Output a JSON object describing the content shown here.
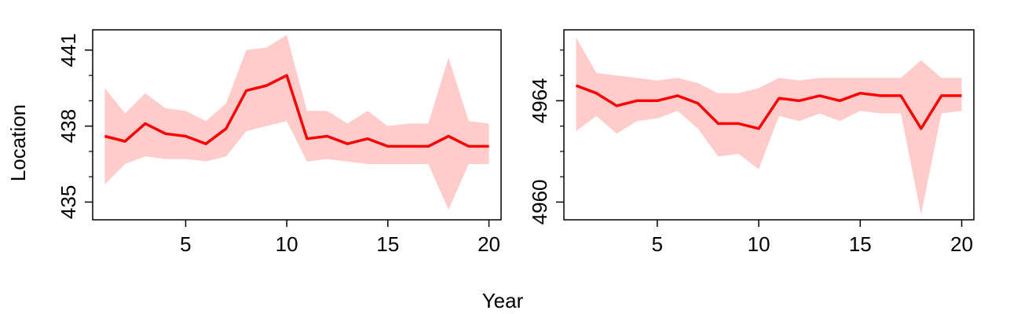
{
  "figure": {
    "xlabel": "Year",
    "ylabel": "Location"
  },
  "colors": {
    "line": "#ff0000",
    "band": "#ffcccc",
    "frame": "#000000"
  },
  "chart_data": [
    {
      "type": "line",
      "xlim": [
        0.4,
        20.6
      ],
      "ylim": [
        434.3,
        441.8
      ],
      "xticks": [
        5,
        10,
        15,
        20
      ],
      "yticks": [
        435,
        438,
        441
      ],
      "yminor": [
        436,
        437,
        439,
        440
      ],
      "x": [
        1,
        2,
        3,
        4,
        5,
        6,
        7,
        8,
        9,
        10,
        11,
        12,
        13,
        14,
        15,
        16,
        17,
        18,
        19,
        20
      ],
      "series": [
        {
          "values": [
            437.6,
            437.4,
            438.1,
            437.7,
            437.6,
            437.3,
            437.9,
            439.4,
            439.6,
            440.0,
            437.5,
            437.6,
            437.3,
            437.5,
            437.2,
            437.2,
            437.2,
            437.6,
            437.2,
            437.2
          ],
          "lower": [
            435.7,
            436.5,
            436.8,
            436.7,
            436.7,
            436.6,
            436.8,
            437.8,
            438.0,
            438.2,
            436.6,
            436.7,
            436.6,
            436.5,
            436.5,
            436.5,
            436.5,
            434.7,
            436.5,
            436.5
          ],
          "upper": [
            439.5,
            438.5,
            439.3,
            438.7,
            438.6,
            438.2,
            438.9,
            441.0,
            441.1,
            441.6,
            438.6,
            438.6,
            438.1,
            438.6,
            438.0,
            438.1,
            438.1,
            440.7,
            438.2,
            438.1
          ]
        }
      ]
    },
    {
      "type": "line",
      "xlim": [
        0.4,
        20.6
      ],
      "ylim": [
        4959.3,
        4966.8
      ],
      "xticks": [
        5,
        10,
        15,
        20
      ],
      "yticks": [
        4960,
        4964
      ],
      "yminor": [
        4961,
        4962,
        4963,
        4965,
        4966
      ],
      "x": [
        1,
        2,
        3,
        4,
        5,
        6,
        7,
        8,
        9,
        10,
        11,
        12,
        13,
        14,
        15,
        16,
        17,
        18,
        19,
        20
      ],
      "series": [
        {
          "values": [
            4964.6,
            4964.3,
            4963.8,
            4964.0,
            4964.0,
            4964.2,
            4963.9,
            4963.1,
            4963.1,
            4962.9,
            4964.1,
            4964.0,
            4964.2,
            4964.0,
            4964.3,
            4964.2,
            4964.2,
            4962.9,
            4964.2,
            4964.2
          ],
          "lower": [
            4962.8,
            4963.4,
            4962.7,
            4963.2,
            4963.3,
            4963.6,
            4962.9,
            4961.8,
            4961.9,
            4961.3,
            4963.4,
            4963.2,
            4963.5,
            4963.2,
            4963.6,
            4963.5,
            4963.5,
            4959.5,
            4963.5,
            4963.6
          ],
          "upper": [
            4966.5,
            4965.1,
            4965.0,
            4964.9,
            4964.8,
            4964.9,
            4964.7,
            4964.3,
            4964.3,
            4964.5,
            4964.9,
            4964.8,
            4964.9,
            4964.9,
            4964.9,
            4964.9,
            4964.9,
            4965.6,
            4964.9,
            4964.9
          ]
        }
      ]
    }
  ]
}
